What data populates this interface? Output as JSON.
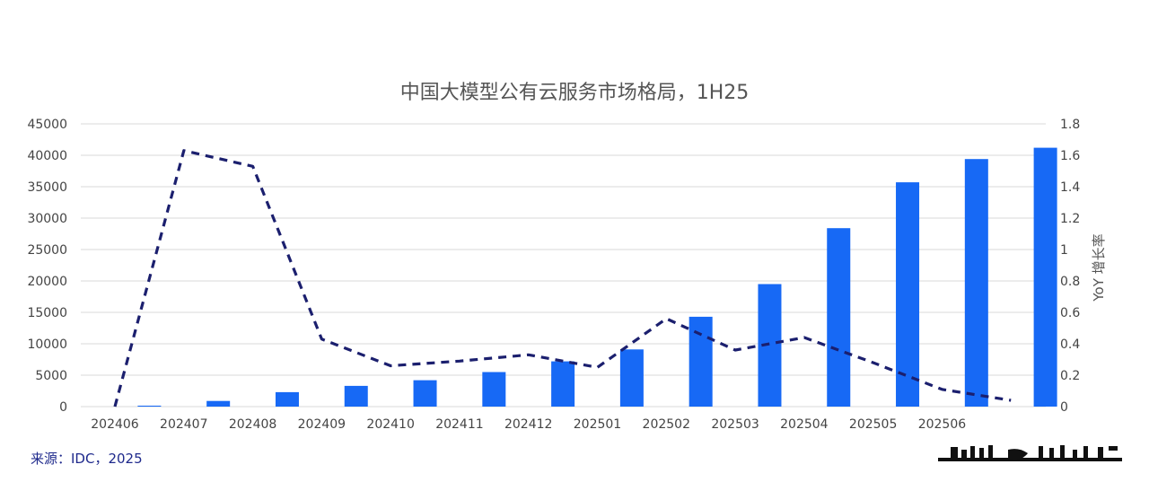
{
  "colors": {
    "bar": "#1769f5",
    "line": "#1b1f6e",
    "grid": "#d9d9d9",
    "source_text": "#1f2a8c"
  },
  "source_text": "来源：IDC，2025",
  "chart_data": {
    "type": "bar",
    "title": "中国大模型公有云服务市场格局，1H25",
    "categories": [
      "202406",
      "202407",
      "202408",
      "202409",
      "202410",
      "202411",
      "202412",
      "202501",
      "202502",
      "202503",
      "202504",
      "202505",
      "202506",
      ""
    ],
    "series": [
      {
        "type": "bar",
        "axis": "left",
        "values": [
          150,
          900,
          2300,
          3300,
          4200,
          5500,
          7200,
          9100,
          14300,
          19500,
          28400,
          35700,
          39400,
          41200
        ]
      },
      {
        "type": "line",
        "axis": "right",
        "style": "dashed",
        "values": [
          0.0,
          1.63,
          1.53,
          0.43,
          0.26,
          0.29,
          0.33,
          0.25,
          0.56,
          0.36,
          0.44,
          0.28,
          0.11,
          0.04
        ]
      }
    ],
    "y_left": {
      "min": 0,
      "max": 45000,
      "ticks": [
        0,
        5000,
        10000,
        15000,
        20000,
        25000,
        30000,
        35000,
        40000,
        45000
      ]
    },
    "y_right": {
      "min": 0,
      "max": 1.8,
      "ticks": [
        0,
        0.2,
        0.4,
        0.6,
        0.8,
        1,
        1.2,
        1.4,
        1.6,
        1.8
      ],
      "label": "YoY 增长率"
    },
    "grid": true
  }
}
